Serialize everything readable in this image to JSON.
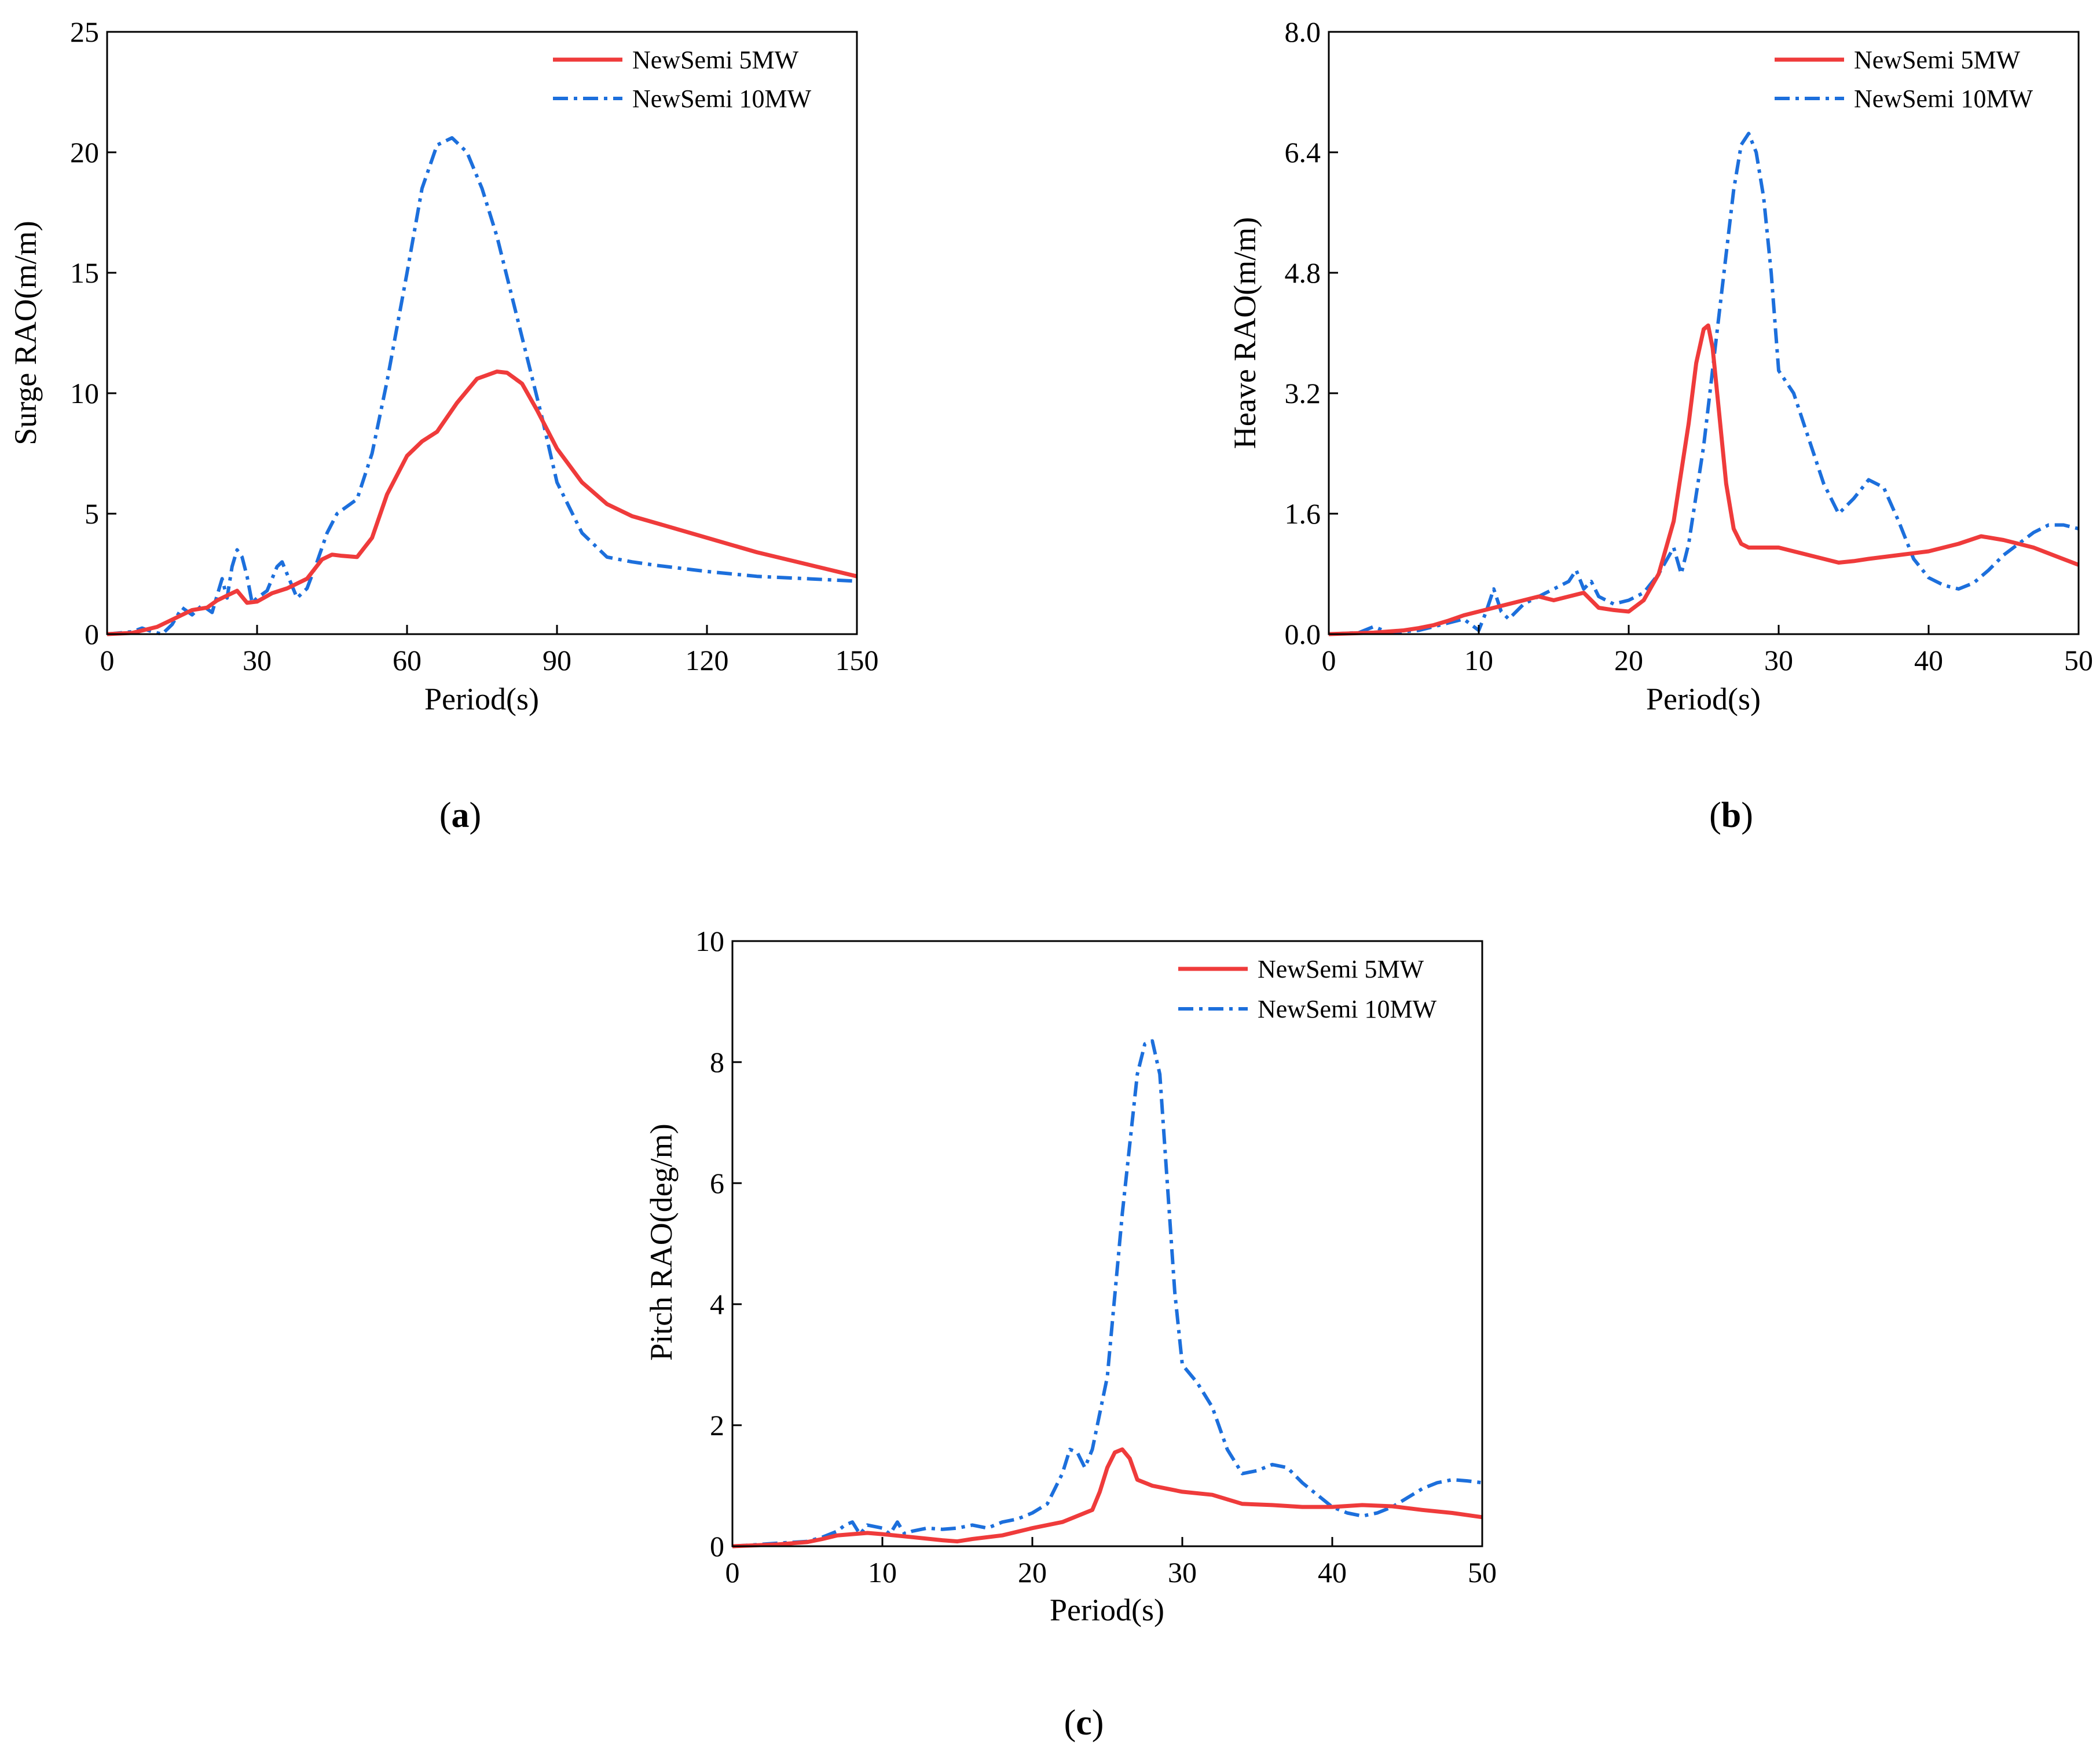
{
  "figure": {
    "panel_labels": [
      {
        "open": "(",
        "letter": "a",
        "close": ")"
      },
      {
        "open": "(",
        "letter": "b",
        "close": ")"
      },
      {
        "open": "(",
        "letter": "c",
        "close": ")"
      }
    ]
  },
  "colors": {
    "series_5mw": "#ef3b3b",
    "series_10mw": "#1c6fdc",
    "axis": "#000000"
  },
  "chart_data": [
    {
      "type": "line",
      "title": "",
      "xlabel": "Period(s)",
      "ylabel": "Surge RAO(m/m)",
      "xlim": [
        0,
        150
      ],
      "ylim": [
        0,
        25
      ],
      "xticks": [
        0,
        30,
        60,
        90,
        120,
        150
      ],
      "xtick_labels": [
        "0",
        "30",
        "60",
        "90",
        "120",
        "150"
      ],
      "yticks": [
        0,
        5,
        10,
        15,
        20,
        25
      ],
      "ytick_labels": [
        "0",
        "5",
        "10",
        "15",
        "20",
        "25"
      ],
      "legend_position": "top-right",
      "series": [
        {
          "name": "NewSemi 5MW",
          "style": "solid",
          "color": "#ef3b3b",
          "x": [
            0,
            5,
            10,
            14,
            17,
            20,
            22,
            24,
            26,
            28,
            30,
            33,
            36,
            40,
            43,
            45,
            47,
            50,
            53,
            56,
            60,
            63,
            66,
            70,
            74,
            78,
            80,
            83,
            86,
            90,
            95,
            100,
            105,
            110,
            120,
            130,
            140,
            150
          ],
          "y": [
            0,
            0.05,
            0.3,
            0.7,
            1.0,
            1.1,
            1.4,
            1.6,
            1.8,
            1.3,
            1.35,
            1.7,
            1.9,
            2.3,
            3.1,
            3.3,
            3.25,
            3.2,
            4.0,
            5.8,
            7.4,
            8.0,
            8.4,
            9.6,
            10.6,
            10.9,
            10.85,
            10.4,
            9.3,
            7.7,
            6.3,
            5.4,
            4.9,
            4.6,
            4.0,
            3.4,
            2.9,
            2.4
          ]
        },
        {
          "name": "NewSemi 10MW",
          "style": "dashdot",
          "color": "#1c6fdc",
          "x": [
            0,
            5,
            7,
            9,
            11,
            13,
            15,
            17,
            19,
            21,
            23,
            24,
            25,
            26,
            27,
            28,
            29,
            30,
            32,
            34,
            35,
            36,
            38,
            40,
            42,
            44,
            46,
            48,
            50,
            53,
            56,
            60,
            63,
            66,
            69,
            72,
            75,
            78,
            81,
            84,
            87,
            90,
            95,
            100,
            105,
            110,
            120,
            130,
            140,
            150
          ],
          "y": [
            0,
            0.1,
            0.25,
            0.1,
            0.0,
            0.4,
            1.1,
            0.8,
            1.2,
            0.9,
            2.3,
            1.5,
            2.8,
            3.5,
            3.2,
            2.4,
            1.3,
            1.5,
            1.8,
            2.8,
            3.0,
            2.5,
            1.5,
            1.9,
            3.0,
            4.2,
            5.0,
            5.3,
            5.6,
            7.5,
            10.5,
            15.0,
            18.5,
            20.3,
            20.6,
            20.0,
            18.5,
            16.5,
            14.0,
            11.5,
            9.0,
            6.3,
            4.2,
            3.2,
            3.0,
            2.85,
            2.6,
            2.4,
            2.3,
            2.2
          ]
        }
      ]
    },
    {
      "type": "line",
      "title": "",
      "xlabel": "Period(s)",
      "ylabel": "Heave RAO(m/m)",
      "xlim": [
        0,
        50
      ],
      "ylim": [
        0,
        8.0
      ],
      "xticks": [
        0,
        10,
        20,
        30,
        40,
        50
      ],
      "xtick_labels": [
        "0",
        "10",
        "20",
        "30",
        "40",
        "50"
      ],
      "yticks": [
        0,
        1.6,
        3.2,
        4.8,
        6.4,
        8.0
      ],
      "ytick_labels": [
        "0.0",
        "1.6",
        "3.2",
        "4.8",
        "6.4",
        "8.0"
      ],
      "legend_position": "top-right",
      "series": [
        {
          "name": "NewSemi 5MW",
          "style": "solid",
          "color": "#ef3b3b",
          "x": [
            0,
            3,
            5,
            6,
            7,
            8,
            9,
            10,
            11,
            12,
            13,
            14,
            15,
            16,
            17,
            18,
            19,
            20,
            21,
            22,
            23,
            24,
            24.5,
            25,
            25.3,
            25.6,
            26,
            26.5,
            27,
            27.5,
            28,
            29,
            30,
            31,
            32,
            33,
            34,
            35,
            36,
            38,
            40,
            42,
            43.5,
            45,
            47,
            50
          ],
          "y": [
            0,
            0.02,
            0.05,
            0.08,
            0.12,
            0.18,
            0.25,
            0.3,
            0.35,
            0.4,
            0.45,
            0.5,
            0.45,
            0.5,
            0.55,
            0.35,
            0.32,
            0.3,
            0.45,
            0.8,
            1.5,
            2.8,
            3.6,
            4.05,
            4.1,
            3.8,
            3.0,
            2.0,
            1.4,
            1.2,
            1.15,
            1.15,
            1.15,
            1.1,
            1.05,
            1.0,
            0.95,
            0.97,
            1.0,
            1.05,
            1.1,
            1.2,
            1.3,
            1.25,
            1.15,
            0.92
          ]
        },
        {
          "name": "NewSemi 10MW",
          "style": "dashdot",
          "color": "#1c6fdc",
          "x": [
            0,
            2,
            3,
            4,
            6,
            8,
            9,
            10,
            10.5,
            11,
            11.5,
            12,
            13,
            14,
            15,
            16,
            16.5,
            17,
            17.5,
            18,
            19,
            20,
            21,
            22,
            23,
            23.5,
            24,
            25,
            26,
            27,
            27.5,
            28,
            28.5,
            29,
            29.5,
            30,
            31,
            32,
            33,
            34,
            35,
            36,
            37,
            38,
            39,
            40,
            41,
            42,
            43,
            44,
            45,
            46,
            47,
            48,
            49,
            50
          ],
          "y": [
            0,
            0.02,
            0.1,
            0.02,
            0.05,
            0.15,
            0.2,
            0.05,
            0.3,
            0.6,
            0.3,
            0.2,
            0.4,
            0.5,
            0.6,
            0.7,
            0.85,
            0.6,
            0.7,
            0.5,
            0.4,
            0.45,
            0.55,
            0.8,
            1.15,
            0.8,
            1.2,
            2.5,
            4.2,
            5.9,
            6.5,
            6.65,
            6.4,
            5.8,
            4.8,
            3.5,
            3.2,
            2.6,
            2.0,
            1.6,
            1.8,
            2.05,
            1.95,
            1.5,
            1.0,
            0.75,
            0.65,
            0.6,
            0.68,
            0.85,
            1.05,
            1.2,
            1.35,
            1.45,
            1.45,
            1.4
          ]
        }
      ]
    },
    {
      "type": "line",
      "title": "",
      "xlabel": "Period(s)",
      "ylabel": "Pitch RAO(deg/m)",
      "xlim": [
        0,
        50
      ],
      "ylim": [
        0,
        10
      ],
      "xticks": [
        0,
        10,
        20,
        30,
        40,
        50
      ],
      "xtick_labels": [
        "0",
        "10",
        "20",
        "30",
        "40",
        "50"
      ],
      "yticks": [
        0,
        2,
        4,
        6,
        8,
        10
      ],
      "ytick_labels": [
        "0",
        "2",
        "4",
        "6",
        "8",
        "10"
      ],
      "legend_position": "top-right",
      "series": [
        {
          "name": "NewSemi 5MW",
          "style": "solid",
          "color": "#ef3b3b",
          "x": [
            0,
            3,
            5,
            6,
            7,
            8,
            9,
            10,
            12,
            14,
            15,
            16,
            18,
            20,
            22,
            23,
            24,
            24.5,
            25,
            25.5,
            26,
            26.5,
            27,
            28,
            29,
            30,
            32,
            34,
            36,
            38,
            40,
            42,
            44,
            46,
            48,
            50
          ],
          "y": [
            0,
            0.03,
            0.07,
            0.12,
            0.18,
            0.2,
            0.22,
            0.2,
            0.15,
            0.1,
            0.08,
            0.12,
            0.18,
            0.3,
            0.4,
            0.5,
            0.6,
            0.9,
            1.3,
            1.55,
            1.6,
            1.45,
            1.1,
            1.0,
            0.95,
            0.9,
            0.85,
            0.7,
            0.68,
            0.65,
            0.65,
            0.68,
            0.66,
            0.6,
            0.55,
            0.48
          ]
        },
        {
          "name": "NewSemi 10MW",
          "style": "dashdot",
          "color": "#1c6fdc",
          "x": [
            0,
            3,
            5,
            6,
            7,
            7.5,
            8,
            8.5,
            9,
            10,
            10.5,
            11,
            11.5,
            12,
            13,
            14,
            15,
            16,
            17,
            18,
            19,
            20,
            21,
            22,
            22.5,
            23,
            23.5,
            24,
            25,
            26,
            27,
            27.5,
            28,
            28.5,
            29,
            29.5,
            30,
            31,
            32,
            33,
            34,
            35,
            36,
            37,
            38,
            39,
            40,
            41,
            42,
            43,
            44,
            45,
            46,
            47,
            48,
            49,
            50
          ],
          "y": [
            0,
            0.05,
            0.08,
            0.15,
            0.25,
            0.35,
            0.4,
            0.2,
            0.35,
            0.3,
            0.2,
            0.4,
            0.2,
            0.25,
            0.3,
            0.28,
            0.3,
            0.35,
            0.3,
            0.4,
            0.45,
            0.55,
            0.7,
            1.2,
            1.6,
            1.55,
            1.3,
            1.6,
            2.8,
            5.5,
            7.8,
            8.3,
            8.35,
            7.8,
            6.0,
            4.2,
            3.0,
            2.7,
            2.3,
            1.6,
            1.2,
            1.25,
            1.35,
            1.3,
            1.05,
            0.85,
            0.65,
            0.55,
            0.5,
            0.55,
            0.65,
            0.8,
            0.95,
            1.05,
            1.1,
            1.08,
            1.05
          ]
        }
      ]
    }
  ]
}
